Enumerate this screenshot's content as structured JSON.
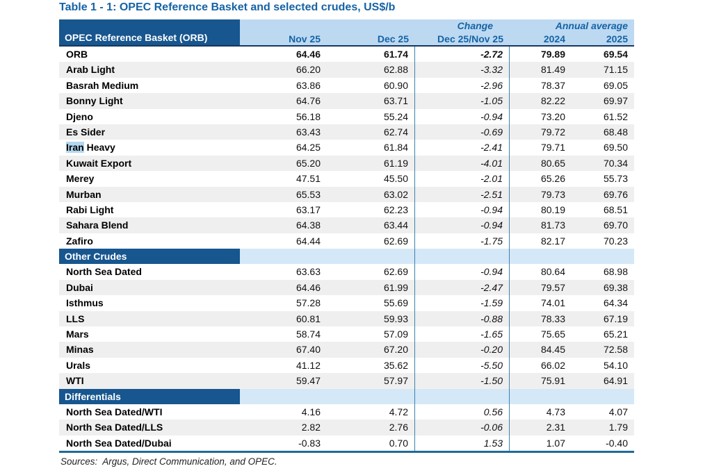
{
  "title": "Table 1 - 1: OPEC Reference Basket and selected crudes, US$/b",
  "header": {
    "col1": "OPEC Reference Basket (ORB)",
    "change_group": "Change",
    "annual_group": "Annual average",
    "nov": "Nov 25",
    "dec": "Dec 25",
    "change_sub": "Dec 25/Nov 25",
    "y2024": "2024",
    "y2025": "2025"
  },
  "sections": [
    {
      "label": "",
      "rows": [
        {
          "label": "ORB",
          "bold": true,
          "values": [
            "64.46",
            "61.74",
            "-2.72",
            "79.89",
            "69.54"
          ]
        },
        {
          "label": "Arab Light",
          "values": [
            "66.20",
            "62.88",
            "-3.32",
            "81.49",
            "71.15"
          ]
        },
        {
          "label": "Basrah Medium",
          "values": [
            "63.86",
            "60.90",
            "-2.96",
            "78.37",
            "69.05"
          ]
        },
        {
          "label": "Bonny Light",
          "values": [
            "64.76",
            "63.71",
            "-1.05",
            "82.22",
            "69.97"
          ]
        },
        {
          "label": "Djeno",
          "values": [
            "56.18",
            "55.24",
            "-0.94",
            "73.20",
            "61.52"
          ]
        },
        {
          "label": "Es Sider",
          "values": [
            "63.43",
            "62.74",
            "-0.69",
            "79.72",
            "68.48"
          ]
        },
        {
          "label": "Iran Heavy",
          "highlight": "Iran",
          "rest": " Heavy",
          "values": [
            "64.25",
            "61.84",
            "-2.41",
            "79.71",
            "69.50"
          ]
        },
        {
          "label": "Kuwait Export",
          "values": [
            "65.20",
            "61.19",
            "-4.01",
            "80.65",
            "70.34"
          ]
        },
        {
          "label": "Merey",
          "values": [
            "47.51",
            "45.50",
            "-2.01",
            "65.26",
            "55.73"
          ]
        },
        {
          "label": "Murban",
          "values": [
            "65.53",
            "63.02",
            "-2.51",
            "79.73",
            "69.76"
          ]
        },
        {
          "label": "Rabi Light",
          "values": [
            "63.17",
            "62.23",
            "-0.94",
            "80.19",
            "68.51"
          ]
        },
        {
          "label": "Sahara Blend",
          "values": [
            "64.38",
            "63.44",
            "-0.94",
            "81.73",
            "69.70"
          ]
        },
        {
          "label": "Zafiro",
          "values": [
            "64.44",
            "62.69",
            "-1.75",
            "82.17",
            "70.23"
          ]
        }
      ]
    },
    {
      "label": "Other Crudes",
      "rows": [
        {
          "label": "North Sea Dated",
          "values": [
            "63.63",
            "62.69",
            "-0.94",
            "80.64",
            "68.98"
          ]
        },
        {
          "label": "Dubai",
          "values": [
            "64.46",
            "61.99",
            "-2.47",
            "79.57",
            "69.38"
          ]
        },
        {
          "label": "Isthmus",
          "values": [
            "57.28",
            "55.69",
            "-1.59",
            "74.01",
            "64.34"
          ]
        },
        {
          "label": "LLS",
          "values": [
            "60.81",
            "59.93",
            "-0.88",
            "78.33",
            "67.19"
          ]
        },
        {
          "label": "Mars",
          "values": [
            "58.74",
            "57.09",
            "-1.65",
            "75.65",
            "65.21"
          ]
        },
        {
          "label": "Minas",
          "values": [
            "67.40",
            "67.20",
            "-0.20",
            "84.45",
            "72.58"
          ]
        },
        {
          "label": "Urals",
          "values": [
            "41.12",
            "35.62",
            "-5.50",
            "66.02",
            "54.10"
          ]
        },
        {
          "label": "WTI",
          "values": [
            "59.47",
            "57.97",
            "-1.50",
            "75.91",
            "64.91"
          ]
        }
      ]
    },
    {
      "label": "Differentials",
      "rows": [
        {
          "label": "North Sea Dated/WTI",
          "values": [
            "4.16",
            "4.72",
            "0.56",
            "4.73",
            "4.07"
          ]
        },
        {
          "label": "North Sea Dated/LLS",
          "values": [
            "2.82",
            "2.76",
            "-0.06",
            "2.31",
            "1.79"
          ]
        },
        {
          "label": "North Sea Dated/Dubai",
          "values": [
            "-0.83",
            "0.70",
            "1.53",
            "1.07",
            "-0.40"
          ]
        }
      ]
    }
  ],
  "sources": "Sources:  Argus, Direct Communication, and OPEC.",
  "colors": {
    "header_dark_blue": "#17568F",
    "header_light_blue": "#BDD9F2",
    "section_strip_blue": "#D4E8F8",
    "row_alternate_gray": "#EFEFEF",
    "title_text_blue": "#1563A5",
    "header_border_navy": "#17375E",
    "column_line_blue": "#3F80AB",
    "bottom_border_teal": "#1E6B96",
    "iran_highlight_blue": "#B3D7F0"
  }
}
